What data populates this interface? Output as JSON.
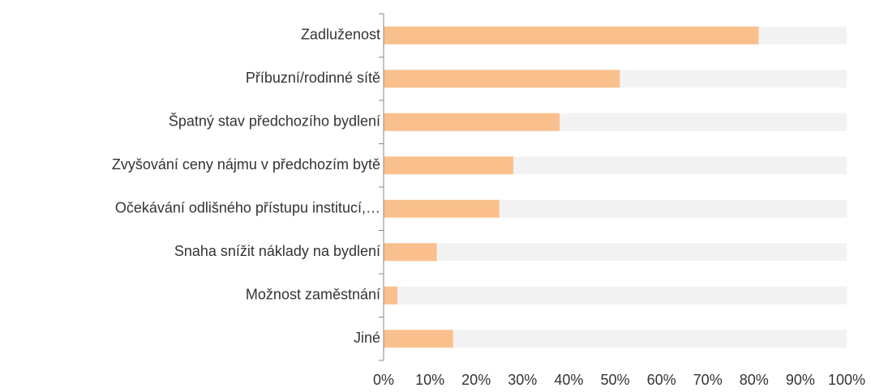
{
  "chart_data": {
    "type": "bar",
    "orientation": "horizontal",
    "categories": [
      "Zadluženost",
      "Příbuzní/rodinné sítě",
      "Špatný stav předchozího bydlení",
      "Zvyšování ceny nájmu v předchozím bytě",
      "Očekávání odlišného přístupu institucí,…",
      "Snaha snížit náklady na bydlení",
      "Možnost zaměstnání",
      "Jiné"
    ],
    "values": [
      81,
      51,
      38,
      28,
      25,
      11.5,
      3,
      15
    ],
    "color": "#f9c08e",
    "track_color": "#f2f2f2",
    "xlim": [
      0,
      100
    ],
    "xticks": [
      {
        "value": 0,
        "label": "0%"
      },
      {
        "value": 10,
        "label": "10%"
      },
      {
        "value": 20,
        "label": "20%"
      },
      {
        "value": 30,
        "label": "30%"
      },
      {
        "value": 40,
        "label": "40%"
      },
      {
        "value": 50,
        "label": "50%"
      },
      {
        "value": 60,
        "label": "60%"
      },
      {
        "value": 70,
        "label": "70%"
      },
      {
        "value": 80,
        "label": "80%"
      },
      {
        "value": 90,
        "label": "90%"
      },
      {
        "value": 100,
        "label": "100%"
      }
    ]
  }
}
